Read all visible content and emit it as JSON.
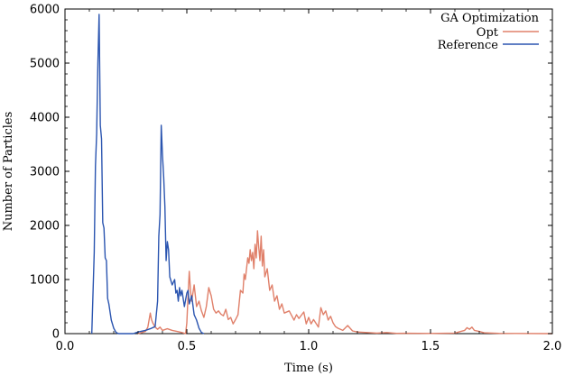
{
  "chart_data": {
    "type": "line",
    "xlabel": "Time (s)",
    "ylabel": "Number of Particles",
    "xlim": [
      0,
      2.0
    ],
    "ylim": [
      0,
      6000
    ],
    "x_ticks": [
      0.0,
      0.5,
      1.0,
      1.5,
      2.0
    ],
    "x_tick_labels": [
      "0.0",
      "0.5",
      "1.0",
      "1.5",
      "2.0"
    ],
    "y_ticks": [
      0,
      1000,
      2000,
      3000,
      4000,
      5000,
      6000
    ],
    "y_tick_labels": [
      "0",
      "1000",
      "2000",
      "3000",
      "4000",
      "5000",
      "6000"
    ],
    "grid": false,
    "legend": {
      "title": "GA Optimization",
      "placement": "top-right"
    },
    "series": [
      {
        "name": "Opt",
        "color": "#e0806a",
        "points": [
          [
            0.3,
            0
          ],
          [
            0.33,
            40
          ],
          [
            0.34,
            120
          ],
          [
            0.35,
            380
          ],
          [
            0.355,
            260
          ],
          [
            0.36,
            200
          ],
          [
            0.37,
            120
          ],
          [
            0.38,
            80
          ],
          [
            0.39,
            120
          ],
          [
            0.4,
            60
          ],
          [
            0.42,
            90
          ],
          [
            0.44,
            60
          ],
          [
            0.46,
            40
          ],
          [
            0.48,
            20
          ],
          [
            0.495,
            0
          ],
          [
            0.5,
            200
          ],
          [
            0.505,
            700
          ],
          [
            0.51,
            1150
          ],
          [
            0.515,
            800
          ],
          [
            0.52,
            600
          ],
          [
            0.53,
            900
          ],
          [
            0.535,
            700
          ],
          [
            0.54,
            500
          ],
          [
            0.55,
            600
          ],
          [
            0.56,
            420
          ],
          [
            0.57,
            300
          ],
          [
            0.58,
            500
          ],
          [
            0.59,
            850
          ],
          [
            0.6,
            700
          ],
          [
            0.61,
            450
          ],
          [
            0.62,
            380
          ],
          [
            0.63,
            420
          ],
          [
            0.64,
            360
          ],
          [
            0.65,
            330
          ],
          [
            0.66,
            450
          ],
          [
            0.67,
            260
          ],
          [
            0.68,
            300
          ],
          [
            0.69,
            180
          ],
          [
            0.7,
            260
          ],
          [
            0.71,
            350
          ],
          [
            0.72,
            800
          ],
          [
            0.73,
            750
          ],
          [
            0.735,
            1100
          ],
          [
            0.74,
            1000
          ],
          [
            0.75,
            1400
          ],
          [
            0.755,
            1300
          ],
          [
            0.76,
            1550
          ],
          [
            0.765,
            1350
          ],
          [
            0.77,
            1500
          ],
          [
            0.775,
            1200
          ],
          [
            0.78,
            1650
          ],
          [
            0.785,
            1400
          ],
          [
            0.79,
            1900
          ],
          [
            0.795,
            1600
          ],
          [
            0.8,
            1350
          ],
          [
            0.805,
            1800
          ],
          [
            0.81,
            1250
          ],
          [
            0.815,
            1550
          ],
          [
            0.82,
            1050
          ],
          [
            0.83,
            1200
          ],
          [
            0.84,
            800
          ],
          [
            0.85,
            900
          ],
          [
            0.86,
            600
          ],
          [
            0.87,
            700
          ],
          [
            0.88,
            450
          ],
          [
            0.89,
            550
          ],
          [
            0.9,
            380
          ],
          [
            0.92,
            420
          ],
          [
            0.94,
            250
          ],
          [
            0.95,
            350
          ],
          [
            0.96,
            280
          ],
          [
            0.98,
            400
          ],
          [
            0.99,
            180
          ],
          [
            1.0,
            300
          ],
          [
            1.01,
            180
          ],
          [
            1.02,
            260
          ],
          [
            1.04,
            120
          ],
          [
            1.05,
            480
          ],
          [
            1.06,
            350
          ],
          [
            1.07,
            420
          ],
          [
            1.08,
            250
          ],
          [
            1.09,
            320
          ],
          [
            1.1,
            200
          ],
          [
            1.11,
            130
          ],
          [
            1.12,
            100
          ],
          [
            1.14,
            60
          ],
          [
            1.16,
            150
          ],
          [
            1.18,
            50
          ],
          [
            1.2,
            30
          ],
          [
            1.24,
            20
          ],
          [
            1.28,
            10
          ],
          [
            1.32,
            20
          ],
          [
            1.36,
            5
          ],
          [
            1.4,
            8
          ],
          [
            1.5,
            3
          ],
          [
            1.6,
            10
          ],
          [
            1.64,
            60
          ],
          [
            1.65,
            110
          ],
          [
            1.66,
            80
          ],
          [
            1.67,
            120
          ],
          [
            1.68,
            60
          ],
          [
            1.7,
            40
          ],
          [
            1.72,
            15
          ],
          [
            1.78,
            5
          ],
          [
            1.85,
            3
          ],
          [
            2.0,
            0
          ]
        ]
      },
      {
        "name": "Reference",
        "color": "#2b55b0",
        "points": [
          [
            0.11,
            0
          ],
          [
            0.12,
            1500
          ],
          [
            0.125,
            3100
          ],
          [
            0.13,
            3700
          ],
          [
            0.135,
            5000
          ],
          [
            0.14,
            5900
          ],
          [
            0.145,
            3850
          ],
          [
            0.15,
            3600
          ],
          [
            0.155,
            2050
          ],
          [
            0.16,
            1950
          ],
          [
            0.165,
            1400
          ],
          [
            0.17,
            1350
          ],
          [
            0.175,
            650
          ],
          [
            0.18,
            550
          ],
          [
            0.19,
            250
          ],
          [
            0.2,
            100
          ],
          [
            0.21,
            20
          ],
          [
            0.22,
            0
          ],
          [
            0.28,
            0
          ],
          [
            0.3,
            30
          ],
          [
            0.33,
            60
          ],
          [
            0.35,
            90
          ],
          [
            0.37,
            130
          ],
          [
            0.38,
            600
          ],
          [
            0.385,
            1800
          ],
          [
            0.39,
            2200
          ],
          [
            0.395,
            3850
          ],
          [
            0.4,
            3300
          ],
          [
            0.405,
            2900
          ],
          [
            0.41,
            2350
          ],
          [
            0.415,
            1350
          ],
          [
            0.42,
            1700
          ],
          [
            0.425,
            1550
          ],
          [
            0.43,
            1050
          ],
          [
            0.44,
            900
          ],
          [
            0.45,
            1000
          ],
          [
            0.455,
            750
          ],
          [
            0.46,
            800
          ],
          [
            0.465,
            600
          ],
          [
            0.47,
            850
          ],
          [
            0.475,
            700
          ],
          [
            0.48,
            800
          ],
          [
            0.49,
            500
          ],
          [
            0.5,
            750
          ],
          [
            0.505,
            800
          ],
          [
            0.51,
            550
          ],
          [
            0.52,
            700
          ],
          [
            0.53,
            350
          ],
          [
            0.54,
            250
          ],
          [
            0.55,
            100
          ],
          [
            0.56,
            20
          ],
          [
            0.57,
            0
          ]
        ]
      }
    ]
  }
}
